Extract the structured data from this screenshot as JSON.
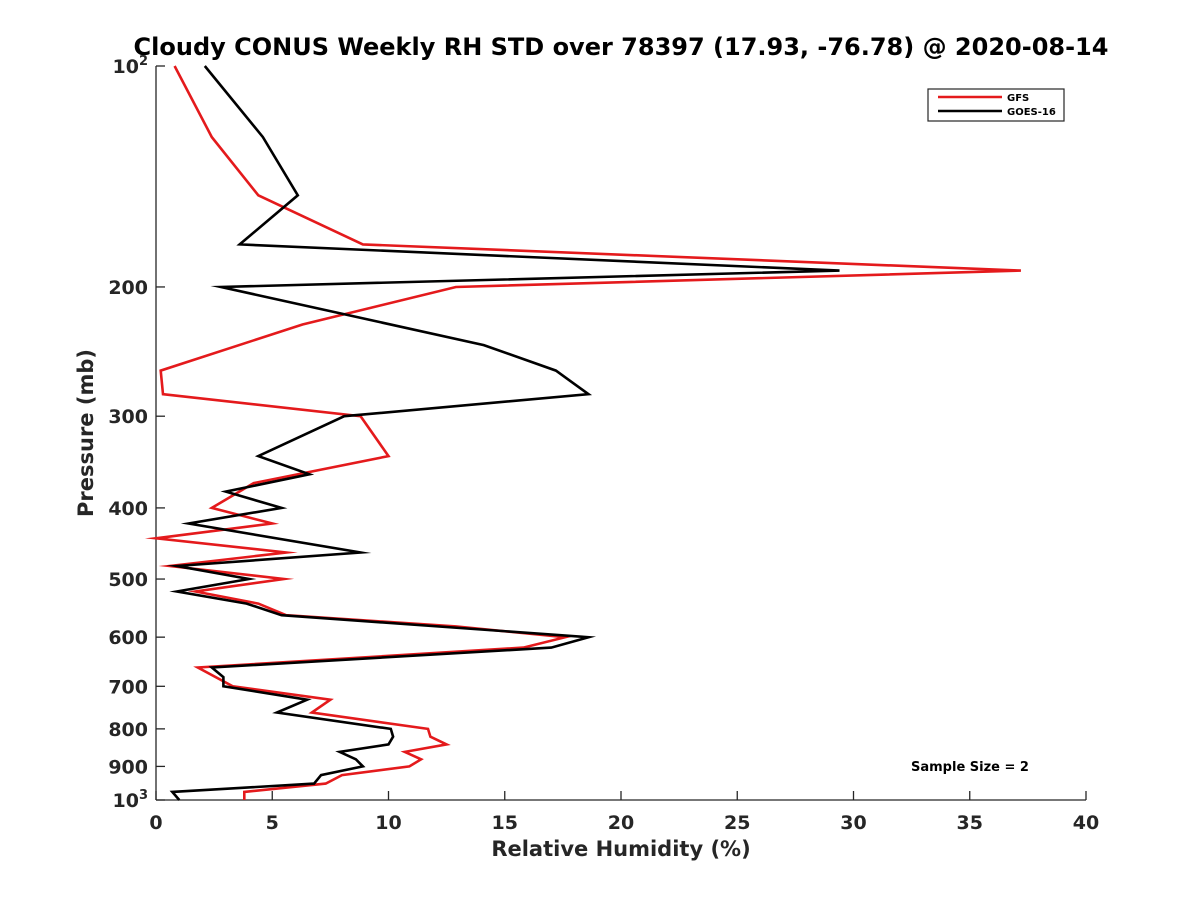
{
  "chart_data": {
    "type": "line",
    "title": "Cloudy CONUS Weekly RH STD over 78397 (17.93, -76.78) @ 2020-08-14",
    "xlabel": "Relative Humidity (%)",
    "ylabel": "Pressure (mb)",
    "xlim": [
      0,
      40
    ],
    "ylim": [
      100,
      1000
    ],
    "y_scale": "log",
    "y_reversed": true,
    "grid": false,
    "legend_position": "top-right",
    "x_ticks": [
      "0",
      "5",
      "10",
      "15",
      "20",
      "25",
      "30",
      "35",
      "40"
    ],
    "y_ticks": [
      {
        "value": 100,
        "label": "10",
        "sup": "2"
      },
      {
        "value": 200,
        "label": "200",
        "sup": ""
      },
      {
        "value": 300,
        "label": "300",
        "sup": ""
      },
      {
        "value": 400,
        "label": "400",
        "sup": ""
      },
      {
        "value": 500,
        "label": "500",
        "sup": ""
      },
      {
        "value": 600,
        "label": "600",
        "sup": ""
      },
      {
        "value": 700,
        "label": "700",
        "sup": ""
      },
      {
        "value": 800,
        "label": "800",
        "sup": ""
      },
      {
        "value": 900,
        "label": "900",
        "sup": ""
      },
      {
        "value": 1000,
        "label": "10",
        "sup": "3"
      }
    ],
    "series": [
      {
        "name": "GFS",
        "color": "#e41a1c",
        "points": [
          {
            "x": 0.8,
            "y": 100
          },
          {
            "x": 2.4,
            "y": 125
          },
          {
            "x": 4.4,
            "y": 150
          },
          {
            "x": 8.9,
            "y": 175
          },
          {
            "x": 37.2,
            "y": 190
          },
          {
            "x": 12.9,
            "y": 200
          },
          {
            "x": 6.3,
            "y": 225
          },
          {
            "x": 0.2,
            "y": 260
          },
          {
            "x": 0.3,
            "y": 280
          },
          {
            "x": 8.8,
            "y": 300
          },
          {
            "x": 10.0,
            "y": 340
          },
          {
            "x": 4.2,
            "y": 370
          },
          {
            "x": 2.4,
            "y": 400
          },
          {
            "x": 5.0,
            "y": 420
          },
          {
            "x": 0.0,
            "y": 440
          },
          {
            "x": 5.6,
            "y": 460
          },
          {
            "x": 0.6,
            "y": 480
          },
          {
            "x": 5.5,
            "y": 500
          },
          {
            "x": 1.7,
            "y": 520
          },
          {
            "x": 4.4,
            "y": 540
          },
          {
            "x": 5.6,
            "y": 560
          },
          {
            "x": 12.9,
            "y": 580
          },
          {
            "x": 17.6,
            "y": 600
          },
          {
            "x": 15.8,
            "y": 620
          },
          {
            "x": 1.8,
            "y": 660
          },
          {
            "x": 3.3,
            "y": 700
          },
          {
            "x": 7.5,
            "y": 730
          },
          {
            "x": 6.7,
            "y": 760
          },
          {
            "x": 11.7,
            "y": 800
          },
          {
            "x": 11.8,
            "y": 820
          },
          {
            "x": 12.5,
            "y": 840
          },
          {
            "x": 10.7,
            "y": 860
          },
          {
            "x": 11.4,
            "y": 880
          },
          {
            "x": 10.9,
            "y": 900
          },
          {
            "x": 8.0,
            "y": 925
          },
          {
            "x": 7.3,
            "y": 950
          },
          {
            "x": 3.8,
            "y": 975
          },
          {
            "x": 3.8,
            "y": 1000
          }
        ]
      },
      {
        "name": "GOES-16",
        "color": "#000000",
        "points": [
          {
            "x": 2.1,
            "y": 100
          },
          {
            "x": 4.6,
            "y": 125
          },
          {
            "x": 6.1,
            "y": 150
          },
          {
            "x": 3.6,
            "y": 175
          },
          {
            "x": 29.4,
            "y": 190
          },
          {
            "x": 2.8,
            "y": 200
          },
          {
            "x": 14.1,
            "y": 240
          },
          {
            "x": 17.2,
            "y": 260
          },
          {
            "x": 18.6,
            "y": 280
          },
          {
            "x": 8.1,
            "y": 300
          },
          {
            "x": 4.4,
            "y": 340
          },
          {
            "x": 6.6,
            "y": 360
          },
          {
            "x": 3.0,
            "y": 380
          },
          {
            "x": 5.4,
            "y": 400
          },
          {
            "x": 1.4,
            "y": 420
          },
          {
            "x": 8.8,
            "y": 460
          },
          {
            "x": 0.9,
            "y": 480
          },
          {
            "x": 4.0,
            "y": 500
          },
          {
            "x": 0.9,
            "y": 520
          },
          {
            "x": 3.9,
            "y": 540
          },
          {
            "x": 5.4,
            "y": 560
          },
          {
            "x": 18.6,
            "y": 600
          },
          {
            "x": 17.0,
            "y": 620
          },
          {
            "x": 2.4,
            "y": 660
          },
          {
            "x": 2.9,
            "y": 680
          },
          {
            "x": 2.9,
            "y": 700
          },
          {
            "x": 6.5,
            "y": 730
          },
          {
            "x": 5.2,
            "y": 760
          },
          {
            "x": 10.1,
            "y": 800
          },
          {
            "x": 10.2,
            "y": 820
          },
          {
            "x": 10.0,
            "y": 840
          },
          {
            "x": 7.9,
            "y": 860
          },
          {
            "x": 8.6,
            "y": 880
          },
          {
            "x": 8.9,
            "y": 900
          },
          {
            "x": 7.1,
            "y": 925
          },
          {
            "x": 6.8,
            "y": 950
          },
          {
            "x": 0.7,
            "y": 975
          },
          {
            "x": 1.0,
            "y": 1000
          }
        ]
      }
    ],
    "annotations": [
      "Sample Size = 2"
    ]
  },
  "colors": {
    "gfs": "#e41a1c",
    "goes": "#000000",
    "axis": "#262626"
  }
}
